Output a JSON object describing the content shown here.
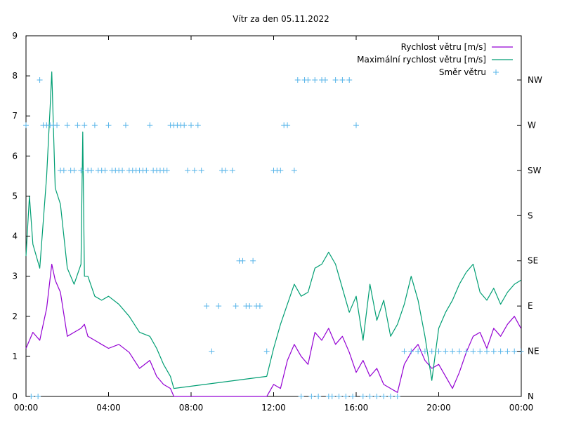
{
  "chart_data": {
    "type": "line",
    "title": "Vítr za den 05.11.2022",
    "xlabel": "",
    "ylabel": "",
    "x_range": [
      "00:00",
      "24:00"
    ],
    "x_ticks": [
      "00:00",
      "04:00",
      "08:00",
      "12:00",
      "16:00",
      "20:00",
      "00:00"
    ],
    "ylim": [
      0,
      9
    ],
    "y_ticks": [
      "0",
      "1",
      "2",
      "3",
      "4",
      "5",
      "6",
      "7",
      "8",
      "9"
    ],
    "y2_ticks": [
      "N",
      "NE",
      "E",
      "SE",
      "S",
      "SW",
      "W",
      "NW"
    ],
    "grid": false,
    "legend_position": "top-right",
    "series": [
      {
        "name": "Rychlost větru [m/s]",
        "axis": "y",
        "color": "#9400d3",
        "x": [
          "00:00",
          "00:20",
          "00:40",
          "01:00",
          "01:15",
          "01:25",
          "01:40",
          "02:00",
          "02:20",
          "02:40",
          "02:50",
          "03:00",
          "03:20",
          "03:40",
          "04:00",
          "04:30",
          "05:00",
          "05:30",
          "06:00",
          "06:20",
          "06:40",
          "07:00",
          "07:10",
          "11:40",
          "12:00",
          "12:20",
          "12:40",
          "13:00",
          "13:20",
          "13:40",
          "14:00",
          "14:20",
          "14:40",
          "15:00",
          "15:20",
          "15:40",
          "16:00",
          "16:20",
          "16:40",
          "17:00",
          "17:20",
          "17:40",
          "18:00",
          "18:20",
          "18:40",
          "19:00",
          "19:20",
          "19:40",
          "20:00",
          "20:20",
          "20:40",
          "21:00",
          "21:20",
          "21:40",
          "22:00",
          "22:20",
          "22:40",
          "23:00",
          "23:20",
          "23:40",
          "23:59"
        ],
        "y": [
          1.2,
          1.6,
          1.4,
          2.2,
          3.3,
          2.9,
          2.6,
          1.5,
          1.6,
          1.7,
          1.8,
          1.5,
          1.4,
          1.3,
          1.2,
          1.3,
          1.1,
          0.7,
          0.9,
          0.5,
          0.3,
          0.2,
          0.0,
          0.0,
          0.3,
          0.2,
          0.9,
          1.3,
          1.0,
          0.8,
          1.6,
          1.4,
          1.7,
          1.3,
          1.5,
          1.1,
          0.6,
          0.9,
          0.5,
          0.7,
          0.3,
          0.2,
          0.1,
          0.8,
          1.1,
          1.3,
          0.9,
          0.7,
          0.8,
          0.5,
          0.2,
          0.6,
          1.1,
          1.5,
          1.6,
          1.2,
          1.7,
          1.5,
          1.8,
          2.0,
          1.7
        ]
      },
      {
        "name": "Maximální rychlost větru [m/s]",
        "axis": "y",
        "color": "#009e73",
        "x": [
          "00:00",
          "00:10",
          "00:20",
          "00:40",
          "01:00",
          "01:10",
          "01:15",
          "01:25",
          "01:40",
          "02:00",
          "02:20",
          "02:40",
          "02:45",
          "02:50",
          "03:00",
          "03:20",
          "03:40",
          "04:00",
          "04:30",
          "05:00",
          "05:30",
          "06:00",
          "06:20",
          "06:40",
          "07:00",
          "07:10",
          "11:40",
          "12:00",
          "12:20",
          "12:40",
          "13:00",
          "13:20",
          "13:40",
          "14:00",
          "14:20",
          "14:40",
          "15:00",
          "15:20",
          "15:40",
          "16:00",
          "16:20",
          "16:40",
          "17:00",
          "17:20",
          "17:40",
          "18:00",
          "18:20",
          "18:40",
          "19:00",
          "19:20",
          "19:40",
          "20:00",
          "20:20",
          "20:40",
          "21:00",
          "21:20",
          "21:40",
          "22:00",
          "22:20",
          "22:40",
          "23:00",
          "23:20",
          "23:40",
          "23:59"
        ],
        "y": [
          3.5,
          5.0,
          3.8,
          3.2,
          5.5,
          7.2,
          8.1,
          5.2,
          4.8,
          3.2,
          2.8,
          3.3,
          6.6,
          3.0,
          3.0,
          2.5,
          2.4,
          2.5,
          2.3,
          2.0,
          1.6,
          1.5,
          1.2,
          0.8,
          0.5,
          0.2,
          0.5,
          1.2,
          1.8,
          2.3,
          2.8,
          2.5,
          2.6,
          3.2,
          3.3,
          3.6,
          3.3,
          2.7,
          2.1,
          2.5,
          1.4,
          2.8,
          1.9,
          2.4,
          1.5,
          1.8,
          2.3,
          3.0,
          2.4,
          1.5,
          0.4,
          1.7,
          2.1,
          2.4,
          2.8,
          3.1,
          3.3,
          2.6,
          2.4,
          2.7,
          2.3,
          2.6,
          2.8,
          2.9
        ]
      },
      {
        "name": "Směr větru",
        "axis": "y2",
        "color": "#56b4e9",
        "direction_scale": [
          "N",
          "NE",
          "E",
          "SE",
          "S",
          "SW",
          "W",
          "NW"
        ],
        "x": [
          "00:00",
          "00:15",
          "00:35",
          "00:40",
          "00:50",
          "01:00",
          "01:10",
          "01:20",
          "01:30",
          "01:40",
          "01:50",
          "02:00",
          "02:10",
          "02:20",
          "02:30",
          "02:40",
          "02:50",
          "03:00",
          "03:10",
          "03:20",
          "03:30",
          "03:40",
          "03:50",
          "04:00",
          "04:10",
          "04:20",
          "04:30",
          "04:40",
          "04:50",
          "05:00",
          "05:10",
          "05:20",
          "05:30",
          "05:40",
          "05:50",
          "06:00",
          "06:10",
          "06:20",
          "06:30",
          "06:40",
          "06:50",
          "07:00",
          "07:10",
          "07:20",
          "07:30",
          "07:40",
          "07:50",
          "08:00",
          "08:10",
          "08:20",
          "08:30",
          "08:45",
          "09:00",
          "09:20",
          "09:30",
          "09:40",
          "10:00",
          "10:10",
          "10:20",
          "10:30",
          "10:40",
          "10:50",
          "11:00",
          "11:10",
          "11:20",
          "11:40",
          "12:00",
          "12:10",
          "12:20",
          "12:30",
          "12:40",
          "13:00",
          "13:10",
          "13:20",
          "13:30",
          "13:40",
          "13:50",
          "14:00",
          "14:10",
          "14:20",
          "14:30",
          "14:40",
          "14:50",
          "15:00",
          "15:10",
          "15:20",
          "15:30",
          "15:40",
          "15:50",
          "16:00",
          "16:20",
          "16:40",
          "17:00",
          "17:20",
          "17:40",
          "18:00",
          "18:20",
          "18:40",
          "19:00",
          "19:20",
          "19:40",
          "20:00",
          "20:20",
          "20:40",
          "21:00",
          "21:20",
          "21:40",
          "22:00",
          "22:20",
          "22:40",
          "23:00",
          "23:20",
          "23:40",
          "23:59"
        ],
        "y": [
          "W",
          "N",
          "N",
          "NW",
          "W",
          "W",
          "W",
          "W",
          "W",
          "SW",
          "SW",
          "W",
          "SW",
          "SW",
          "W",
          "SW",
          "W",
          "SW",
          "SW",
          "W",
          "SW",
          "SW",
          "SW",
          "W",
          "SW",
          "SW",
          "SW",
          "SW",
          "W",
          "SW",
          "SW",
          "SW",
          "SW",
          "SW",
          "SW",
          "W",
          "SW",
          "SW",
          "SW",
          "SW",
          "SW",
          "W",
          "W",
          "W",
          "W",
          "W",
          "SW",
          "W",
          "SW",
          "W",
          "SW",
          "E",
          "NE",
          "E",
          "SW",
          "SW",
          "SW",
          "E",
          "SE",
          "SE",
          "E",
          "E",
          "SE",
          "E",
          "E",
          "NE",
          "SW",
          "SW",
          "SW",
          "W",
          "W",
          "SW",
          "NW",
          "N",
          "NW",
          "NW",
          "N",
          "NW",
          "N",
          "NW",
          "NW",
          "N",
          "N",
          "NW",
          "N",
          "NW",
          "N",
          "NW",
          "N",
          "W",
          "N",
          "N",
          "N",
          "N",
          "N",
          "N",
          "NE",
          "NE",
          "NE",
          "NE",
          "NE",
          "NE",
          "NE",
          "NE",
          "NE",
          "NE",
          "NE",
          "NE",
          "NE",
          "NE",
          "NE",
          "NE",
          "NE",
          "NE"
        ]
      }
    ]
  }
}
